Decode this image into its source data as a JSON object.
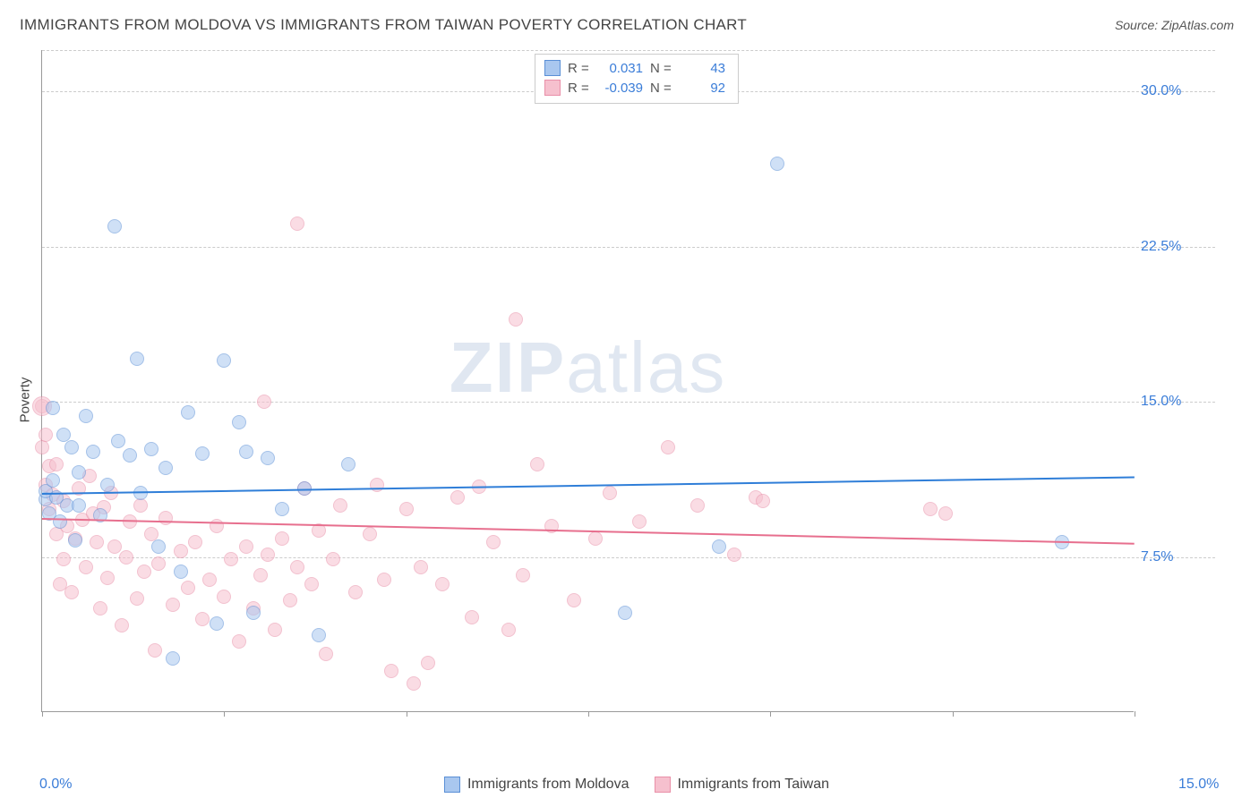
{
  "title": "IMMIGRANTS FROM MOLDOVA VS IMMIGRANTS FROM TAIWAN POVERTY CORRELATION CHART",
  "source_label": "Source:",
  "source_value": "ZipAtlas.com",
  "watermark": {
    "bold": "ZIP",
    "rest": "atlas"
  },
  "y_axis_title": "Poverty",
  "chart": {
    "type": "scatter",
    "xlim": [
      0,
      15
    ],
    "ylim": [
      0,
      32
    ],
    "x_ticks": [
      0,
      2.5,
      5,
      7.5,
      10,
      12.5,
      15
    ],
    "x_tick_labels": {
      "0": "0.0%",
      "15": "15.0%"
    },
    "y_gridlines": [
      7.5,
      15.0,
      22.5,
      30.0
    ],
    "y_tick_labels": [
      "7.5%",
      "15.0%",
      "22.5%",
      "30.0%"
    ],
    "background_color": "#ffffff",
    "grid_color": "#cccccc",
    "axis_color": "#999999",
    "tick_label_color": "#3b7dd8",
    "marker_radius": 8,
    "marker_opacity": 0.55,
    "series": [
      {
        "key": "moldova",
        "label": "Immigrants from Moldova",
        "fill": "#a9c7ef",
        "stroke": "#5a8fd6",
        "line_color": "#2f7ed8",
        "R": "0.031",
        "N": "43",
        "trend": {
          "x0": 0,
          "y0": 10.6,
          "x1": 15,
          "y1": 11.4
        },
        "points": [
          [
            0.05,
            10.3
          ],
          [
            0.05,
            10.7
          ],
          [
            0.1,
            9.6
          ],
          [
            0.15,
            11.2
          ],
          [
            0.15,
            14.7
          ],
          [
            0.2,
            10.4
          ],
          [
            0.25,
            9.2
          ],
          [
            0.3,
            13.4
          ],
          [
            0.35,
            10.0
          ],
          [
            0.4,
            12.8
          ],
          [
            0.45,
            8.3
          ],
          [
            0.5,
            11.6
          ],
          [
            0.5,
            10.0
          ],
          [
            0.6,
            14.3
          ],
          [
            0.7,
            12.6
          ],
          [
            0.8,
            9.5
          ],
          [
            0.9,
            11.0
          ],
          [
            1.0,
            23.5
          ],
          [
            1.05,
            13.1
          ],
          [
            1.2,
            12.4
          ],
          [
            1.3,
            17.1
          ],
          [
            1.35,
            10.6
          ],
          [
            1.5,
            12.7
          ],
          [
            1.6,
            8.0
          ],
          [
            1.7,
            11.8
          ],
          [
            1.8,
            2.6
          ],
          [
            1.9,
            6.8
          ],
          [
            2.0,
            14.5
          ],
          [
            2.2,
            12.5
          ],
          [
            2.4,
            4.3
          ],
          [
            2.5,
            17.0
          ],
          [
            2.7,
            14.0
          ],
          [
            2.8,
            12.6
          ],
          [
            2.9,
            4.8
          ],
          [
            3.1,
            12.3
          ],
          [
            3.3,
            9.8
          ],
          [
            3.6,
            10.8
          ],
          [
            3.8,
            3.7
          ],
          [
            4.2,
            12.0
          ],
          [
            8.0,
            4.8
          ],
          [
            9.3,
            8.0
          ],
          [
            10.1,
            26.5
          ],
          [
            14.0,
            8.2
          ]
        ]
      },
      {
        "key": "taiwan",
        "label": "Immigrants from Taiwan",
        "fill": "#f6c0ce",
        "stroke": "#e98fa8",
        "line_color": "#e76f8e",
        "R": "-0.039",
        "N": "92",
        "trend": {
          "x0": 0,
          "y0": 9.4,
          "x1": 15,
          "y1": 8.2
        },
        "points": [
          [
            0.0,
            14.8
          ],
          [
            0.0,
            12.8
          ],
          [
            0.05,
            13.4
          ],
          [
            0.05,
            11.0
          ],
          [
            0.1,
            9.8
          ],
          [
            0.1,
            11.9
          ],
          [
            0.15,
            10.5
          ],
          [
            0.2,
            8.6
          ],
          [
            0.2,
            12.0
          ],
          [
            0.25,
            6.2
          ],
          [
            0.3,
            10.2
          ],
          [
            0.3,
            7.4
          ],
          [
            0.35,
            9.0
          ],
          [
            0.4,
            5.8
          ],
          [
            0.45,
            8.4
          ],
          [
            0.5,
            10.8
          ],
          [
            0.55,
            9.3
          ],
          [
            0.6,
            7.0
          ],
          [
            0.65,
            11.4
          ],
          [
            0.7,
            9.6
          ],
          [
            0.75,
            8.2
          ],
          [
            0.8,
            5.0
          ],
          [
            0.85,
            9.9
          ],
          [
            0.9,
            6.5
          ],
          [
            0.95,
            10.6
          ],
          [
            1.0,
            8.0
          ],
          [
            1.1,
            4.2
          ],
          [
            1.15,
            7.5
          ],
          [
            1.2,
            9.2
          ],
          [
            1.3,
            5.5
          ],
          [
            1.35,
            10.0
          ],
          [
            1.4,
            6.8
          ],
          [
            1.5,
            8.6
          ],
          [
            1.55,
            3.0
          ],
          [
            1.6,
            7.2
          ],
          [
            1.7,
            9.4
          ],
          [
            1.8,
            5.2
          ],
          [
            1.9,
            7.8
          ],
          [
            2.0,
            6.0
          ],
          [
            2.1,
            8.2
          ],
          [
            2.2,
            4.5
          ],
          [
            2.3,
            6.4
          ],
          [
            2.4,
            9.0
          ],
          [
            2.5,
            5.6
          ],
          [
            2.6,
            7.4
          ],
          [
            2.7,
            3.4
          ],
          [
            2.8,
            8.0
          ],
          [
            2.9,
            5.0
          ],
          [
            3.0,
            6.6
          ],
          [
            3.05,
            15.0
          ],
          [
            3.1,
            7.6
          ],
          [
            3.2,
            4.0
          ],
          [
            3.3,
            8.4
          ],
          [
            3.4,
            5.4
          ],
          [
            3.5,
            23.6
          ],
          [
            3.5,
            7.0
          ],
          [
            3.6,
            10.8
          ],
          [
            3.7,
            6.2
          ],
          [
            3.8,
            8.8
          ],
          [
            3.9,
            2.8
          ],
          [
            4.0,
            7.4
          ],
          [
            4.1,
            10.0
          ],
          [
            4.3,
            5.8
          ],
          [
            4.5,
            8.6
          ],
          [
            4.6,
            11.0
          ],
          [
            4.7,
            6.4
          ],
          [
            4.8,
            2.0
          ],
          [
            5.0,
            9.8
          ],
          [
            5.1,
            1.4
          ],
          [
            5.2,
            7.0
          ],
          [
            5.3,
            2.4
          ],
          [
            5.5,
            6.2
          ],
          [
            5.7,
            10.4
          ],
          [
            5.9,
            4.6
          ],
          [
            6.0,
            10.9
          ],
          [
            6.2,
            8.2
          ],
          [
            6.4,
            4.0
          ],
          [
            6.5,
            19.0
          ],
          [
            6.6,
            6.6
          ],
          [
            6.8,
            12.0
          ],
          [
            7.0,
            9.0
          ],
          [
            7.3,
            5.4
          ],
          [
            7.6,
            8.4
          ],
          [
            7.8,
            10.6
          ],
          [
            8.2,
            9.2
          ],
          [
            8.6,
            12.8
          ],
          [
            9.0,
            10.0
          ],
          [
            9.5,
            7.6
          ],
          [
            9.8,
            10.4
          ],
          [
            9.9,
            10.2
          ],
          [
            12.2,
            9.8
          ],
          [
            12.4,
            9.6
          ]
        ],
        "large_point": [
          0.0,
          14.8
        ]
      }
    ]
  },
  "legend_top": {
    "R_label": "R =",
    "N_label": "N ="
  }
}
